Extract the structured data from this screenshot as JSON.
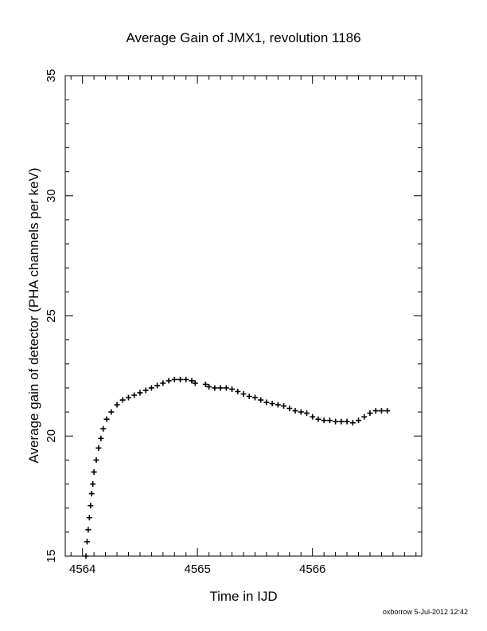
{
  "chart_data": {
    "type": "scatter",
    "title": "Average Gain of JMX1, revolution 1186",
    "xlabel": "Time in IJD",
    "ylabel": "Average gain of detector (PHA channels per keV)",
    "xlim": [
      4563.85,
      4566.95
    ],
    "ylim": [
      15,
      35
    ],
    "xticks": [
      4564,
      4565,
      4566
    ],
    "yticks": [
      15,
      20,
      25,
      30,
      35
    ],
    "marker": "plus",
    "grid": false,
    "series": [
      {
        "color": "#000000",
        "points": [
          [
            4564.03,
            15.0
          ],
          [
            4564.04,
            15.6
          ],
          [
            4564.05,
            16.1
          ],
          [
            4564.06,
            16.6
          ],
          [
            4564.07,
            17.1
          ],
          [
            4564.08,
            17.6
          ],
          [
            4564.09,
            18.0
          ],
          [
            4564.1,
            18.5
          ],
          [
            4564.12,
            19.0
          ],
          [
            4564.14,
            19.5
          ],
          [
            4564.16,
            19.9
          ],
          [
            4564.18,
            20.3
          ],
          [
            4564.21,
            20.7
          ],
          [
            4564.25,
            21.0
          ],
          [
            4564.3,
            21.3
          ],
          [
            4564.35,
            21.5
          ],
          [
            4564.4,
            21.6
          ],
          [
            4564.45,
            21.7
          ],
          [
            4564.5,
            21.8
          ],
          [
            4564.55,
            21.9
          ],
          [
            4564.6,
            22.0
          ],
          [
            4564.65,
            22.1
          ],
          [
            4564.7,
            22.2
          ],
          [
            4564.75,
            22.3
          ],
          [
            4564.8,
            22.35
          ],
          [
            4564.85,
            22.35
          ],
          [
            4564.9,
            22.35
          ],
          [
            4564.95,
            22.3
          ],
          [
            4564.98,
            22.2
          ],
          [
            4565.07,
            22.15
          ],
          [
            4565.1,
            22.05
          ],
          [
            4565.15,
            22.0
          ],
          [
            4565.2,
            22.0
          ],
          [
            4565.25,
            22.0
          ],
          [
            4565.3,
            21.95
          ],
          [
            4565.35,
            21.85
          ],
          [
            4565.4,
            21.75
          ],
          [
            4565.45,
            21.65
          ],
          [
            4565.5,
            21.6
          ],
          [
            4565.55,
            21.5
          ],
          [
            4565.6,
            21.4
          ],
          [
            4565.65,
            21.35
          ],
          [
            4565.7,
            21.3
          ],
          [
            4565.75,
            21.25
          ],
          [
            4565.8,
            21.15
          ],
          [
            4565.85,
            21.05
          ],
          [
            4565.9,
            21.0
          ],
          [
            4565.95,
            20.95
          ],
          [
            4566.0,
            20.8
          ],
          [
            4566.05,
            20.7
          ],
          [
            4566.1,
            20.65
          ],
          [
            4566.15,
            20.65
          ],
          [
            4566.2,
            20.6
          ],
          [
            4566.25,
            20.6
          ],
          [
            4566.3,
            20.6
          ],
          [
            4566.35,
            20.55
          ],
          [
            4566.4,
            20.65
          ],
          [
            4566.45,
            20.8
          ],
          [
            4566.5,
            20.95
          ],
          [
            4566.55,
            21.05
          ],
          [
            4566.6,
            21.05
          ],
          [
            4566.65,
            21.05
          ]
        ]
      }
    ]
  },
  "footer": {
    "credit": "oxborrow  5-Jul-2012 12:42"
  }
}
